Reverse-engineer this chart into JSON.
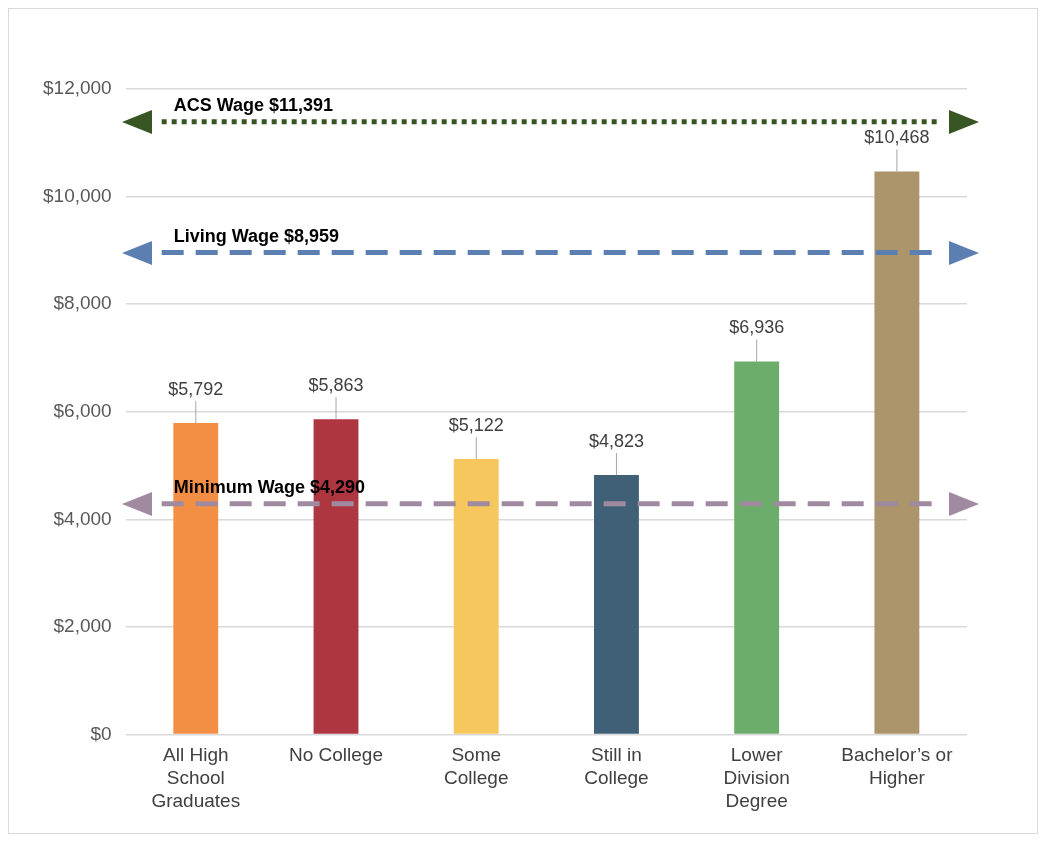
{
  "chart_data": {
    "type": "bar",
    "categories": [
      "All High School Graduates",
      "No College",
      "Some College",
      "Still in College",
      "Lower Division Degree",
      "Bachelor’s or Higher"
    ],
    "values": [
      5792,
      5863,
      5122,
      4823,
      6936,
      10468
    ],
    "colors": [
      "#f38f45",
      "#ae3640",
      "#f5c75c",
      "#3f6077",
      "#6cad6b",
      "#ac946b"
    ],
    "value_labels": [
      "$5,792",
      "$5,863",
      "$5,122",
      "$4,823",
      "$6,936",
      "$10,468"
    ],
    "ylim": [
      0,
      12000
    ],
    "yticks": [
      {
        "value": 0,
        "label": "$0"
      },
      {
        "value": 2000,
        "label": "$2,000"
      },
      {
        "value": 4000,
        "label": "$4,000"
      },
      {
        "value": 6000,
        "label": "$6,000"
      },
      {
        "value": 8000,
        "label": "$8,000"
      },
      {
        "value": 10000,
        "label": "$10,000"
      },
      {
        "value": 12000,
        "label": "$12,000"
      }
    ],
    "grid": "y",
    "legend": false,
    "ref_lines": [
      {
        "axis": "y",
        "value": 11391,
        "label": "ACS Wage $11,391",
        "color": "#375623",
        "line_style": "dotted"
      },
      {
        "axis": "y",
        "value": 8959,
        "label": "Living Wage $8,959",
        "color": "#5b7fb0",
        "line_style": "dashed"
      },
      {
        "axis": "y",
        "value": 4290,
        "label": "Minimum Wage $4,290",
        "color": "#a08aa0",
        "line_style": "dashed"
      }
    ]
  }
}
